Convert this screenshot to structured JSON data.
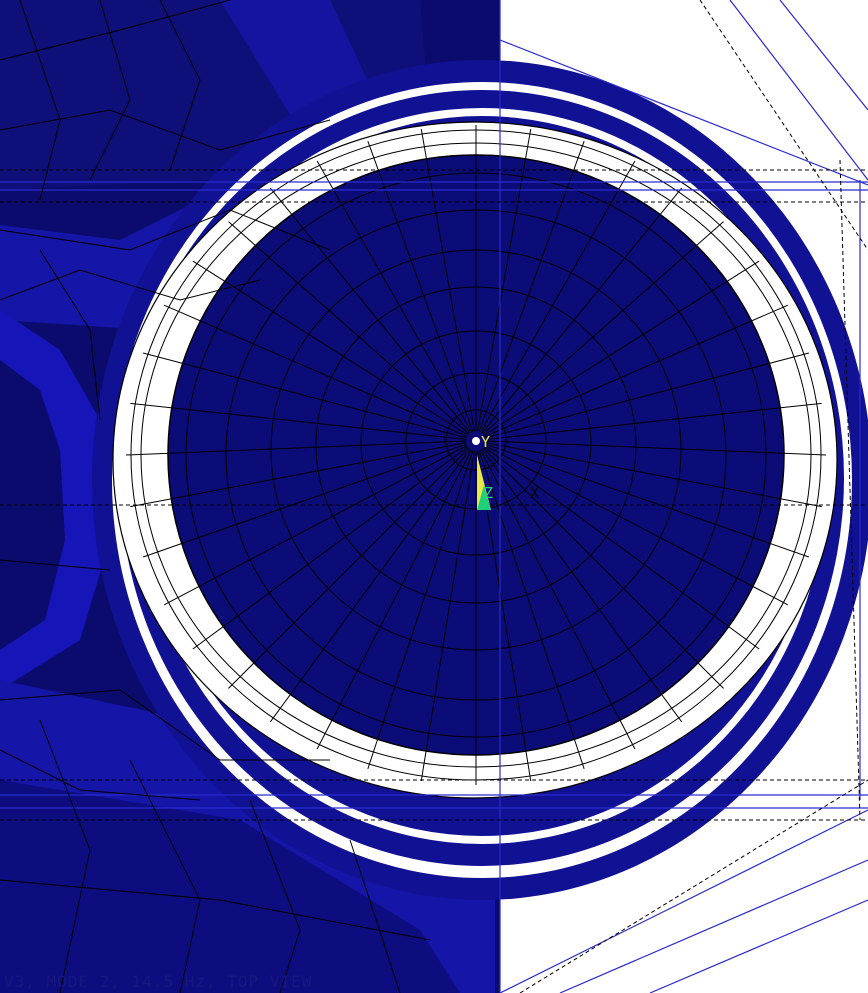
{
  "viewer": {
    "caption": "V3, MODE 2, 14.5 Hz, TOP VIEW",
    "triad": {
      "y_label": "Y",
      "z_label": "Z",
      "x_label": "X"
    }
  },
  "colors": {
    "background": "#ffffff",
    "shade_dark": "#0b0b6e",
    "shade_mid": "#111194",
    "shade_light": "#1a1ad6",
    "mesh_line": "#000000",
    "wire_blue": "#2a2ad0",
    "gap_white": "#ffffff",
    "triad_yellow": "#e8e84a",
    "triad_green": "#1fd07a",
    "caption_text": "#17177d"
  },
  "icons": {
    "origin_marker": "origin-marker-icon",
    "triad": "coordinate-triad-icon"
  }
}
